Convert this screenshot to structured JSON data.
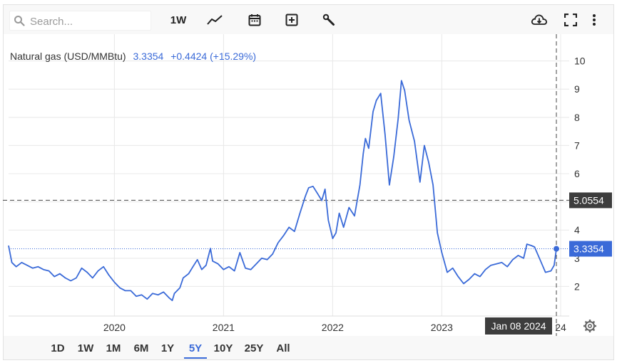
{
  "toolbar": {
    "search_placeholder": "Search...",
    "interval_label": "1W",
    "icons": [
      "search-icon",
      "line-chart-icon",
      "calendar-icon",
      "add-box-icon",
      "wrench-icon",
      "cloud-download-icon",
      "fullscreen-icon",
      "more-vert-icon"
    ]
  },
  "header": {
    "name": "Natural gas (USD/MMBtu)",
    "price": "3.3354",
    "change": "+0.4424 (+15.29%)"
  },
  "crosshair": {
    "price_label": "5.0554",
    "date_label": "Jan 08 2024"
  },
  "last_price_label": "3.3354",
  "ranges": [
    "1D",
    "1W",
    "1M",
    "6M",
    "1Y",
    "5Y",
    "10Y",
    "25Y",
    "All"
  ],
  "active_range": "5Y",
  "colors": {
    "line": "#3a6ad8",
    "axis_text": "#333333",
    "label_bg": "#3d3d3d",
    "grid": "#e8e8e8"
  },
  "chart_data": {
    "type": "line",
    "title": "Natural gas (USD/MMBtu)",
    "xlabel": "",
    "ylabel": "",
    "x_ticks": [
      "2020",
      "2021",
      "2022",
      "2023",
      "24"
    ],
    "y_ticks": [
      2,
      3,
      4,
      5,
      6,
      7,
      8,
      9,
      10
    ],
    "ylim": [
      0.95,
      10.95
    ],
    "xlim": [
      2019.03,
      2024.05
    ],
    "crosshair_value": 5.0554,
    "last_value": 3.3354,
    "grid": true,
    "series": [
      {
        "values": [
          [
            2019.03,
            3.45
          ],
          [
            2019.06,
            2.85
          ],
          [
            2019.1,
            2.7
          ],
          [
            2019.15,
            2.85
          ],
          [
            2019.2,
            2.75
          ],
          [
            2019.25,
            2.65
          ],
          [
            2019.3,
            2.7
          ],
          [
            2019.35,
            2.6
          ],
          [
            2019.4,
            2.55
          ],
          [
            2019.45,
            2.35
          ],
          [
            2019.5,
            2.45
          ],
          [
            2019.55,
            2.3
          ],
          [
            2019.6,
            2.2
          ],
          [
            2019.65,
            2.3
          ],
          [
            2019.7,
            2.65
          ],
          [
            2019.75,
            2.5
          ],
          [
            2019.8,
            2.3
          ],
          [
            2019.85,
            2.55
          ],
          [
            2019.9,
            2.7
          ],
          [
            2019.95,
            2.4
          ],
          [
            2020.0,
            2.15
          ],
          [
            2020.05,
            1.95
          ],
          [
            2020.1,
            1.85
          ],
          [
            2020.15,
            1.85
          ],
          [
            2020.2,
            1.65
          ],
          [
            2020.25,
            1.7
          ],
          [
            2020.3,
            1.55
          ],
          [
            2020.35,
            1.75
          ],
          [
            2020.4,
            1.7
          ],
          [
            2020.45,
            1.8
          ],
          [
            2020.5,
            1.6
          ],
          [
            2020.53,
            1.5
          ],
          [
            2020.55,
            1.75
          ],
          [
            2020.6,
            1.95
          ],
          [
            2020.63,
            2.3
          ],
          [
            2020.68,
            2.45
          ],
          [
            2020.72,
            2.7
          ],
          [
            2020.76,
            2.95
          ],
          [
            2020.8,
            2.6
          ],
          [
            2020.84,
            2.75
          ],
          [
            2020.88,
            3.35
          ],
          [
            2020.9,
            2.9
          ],
          [
            2020.95,
            2.8
          ],
          [
            2021.0,
            2.6
          ],
          [
            2021.05,
            2.7
          ],
          [
            2021.1,
            2.55
          ],
          [
            2021.15,
            3.2
          ],
          [
            2021.2,
            2.65
          ],
          [
            2021.25,
            2.6
          ],
          [
            2021.3,
            2.8
          ],
          [
            2021.35,
            3.0
          ],
          [
            2021.4,
            2.95
          ],
          [
            2021.45,
            3.15
          ],
          [
            2021.5,
            3.55
          ],
          [
            2021.55,
            3.8
          ],
          [
            2021.6,
            4.1
          ],
          [
            2021.65,
            3.95
          ],
          [
            2021.7,
            4.6
          ],
          [
            2021.75,
            5.2
          ],
          [
            2021.78,
            5.5
          ],
          [
            2021.82,
            5.55
          ],
          [
            2021.86,
            5.3
          ],
          [
            2021.9,
            5.05
          ],
          [
            2021.93,
            5.45
          ],
          [
            2021.96,
            4.35
          ],
          [
            2022.0,
            3.7
          ],
          [
            2022.03,
            3.9
          ],
          [
            2022.06,
            4.6
          ],
          [
            2022.1,
            4.1
          ],
          [
            2022.15,
            4.8
          ],
          [
            2022.2,
            4.5
          ],
          [
            2022.25,
            5.6
          ],
          [
            2022.28,
            6.7
          ],
          [
            2022.3,
            7.25
          ],
          [
            2022.33,
            6.9
          ],
          [
            2022.37,
            8.2
          ],
          [
            2022.4,
            8.6
          ],
          [
            2022.44,
            8.85
          ],
          [
            2022.48,
            7.4
          ],
          [
            2022.52,
            5.6
          ],
          [
            2022.56,
            6.6
          ],
          [
            2022.6,
            7.95
          ],
          [
            2022.63,
            9.3
          ],
          [
            2022.66,
            8.95
          ],
          [
            2022.7,
            7.9
          ],
          [
            2022.75,
            7.15
          ],
          [
            2022.8,
            5.7
          ],
          [
            2022.84,
            7.0
          ],
          [
            2022.88,
            6.4
          ],
          [
            2022.92,
            5.6
          ],
          [
            2022.96,
            3.9
          ],
          [
            2023.0,
            3.2
          ],
          [
            2023.05,
            2.5
          ],
          [
            2023.1,
            2.65
          ],
          [
            2023.15,
            2.35
          ],
          [
            2023.2,
            2.1
          ],
          [
            2023.25,
            2.25
          ],
          [
            2023.3,
            2.45
          ],
          [
            2023.35,
            2.35
          ],
          [
            2023.4,
            2.6
          ],
          [
            2023.45,
            2.75
          ],
          [
            2023.5,
            2.8
          ],
          [
            2023.55,
            2.85
          ],
          [
            2023.6,
            2.7
          ],
          [
            2023.65,
            2.95
          ],
          [
            2023.7,
            3.1
          ],
          [
            2023.75,
            3.0
          ],
          [
            2023.78,
            3.5
          ],
          [
            2023.82,
            3.45
          ],
          [
            2023.85,
            3.4
          ],
          [
            2023.9,
            2.95
          ],
          [
            2023.95,
            2.5
          ],
          [
            2024.0,
            2.55
          ],
          [
            2024.03,
            2.75
          ],
          [
            2024.05,
            3.3354
          ]
        ]
      }
    ]
  }
}
